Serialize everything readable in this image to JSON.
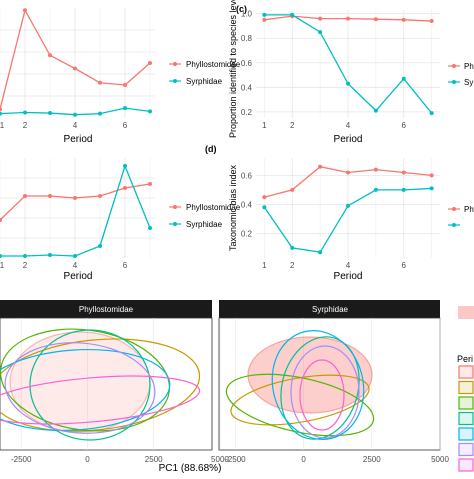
{
  "colors": {
    "phyllostomidae": "#F8766D",
    "syrphidae": "#00BFC4",
    "grid": "#e6e6e6",
    "strip": "#1a1a1a",
    "periods": [
      "#F8766D",
      "#C49A00",
      "#53B400",
      "#00C094",
      "#00B6EB",
      "#A58AFF",
      "#FB61D7"
    ]
  },
  "chart_data": [
    {
      "id": "a",
      "type": "line",
      "panel_label": "",
      "xlabel": "Period",
      "ylabel": "",
      "x": [
        1,
        2,
        3,
        4,
        5,
        6,
        7
      ],
      "xticks": [
        "2",
        "4",
        "6"
      ],
      "xlim": [
        1,
        7.2
      ],
      "ylim": [
        0,
        1
      ],
      "series": [
        {
          "name": "Phyllostomidae",
          "values": [
            0.08,
            0.98,
            0.57,
            0.45,
            0.32,
            0.3,
            0.5
          ]
        },
        {
          "name": "Syrphidae",
          "values": [
            0.04,
            0.05,
            0.045,
            0.03,
            0.04,
            0.09,
            0.06
          ]
        }
      ],
      "legend": "right"
    },
    {
      "id": "c",
      "type": "line",
      "panel_label": "(c)",
      "xlabel": "Period",
      "ylabel": "Proportion identified to species level",
      "x": [
        1,
        2,
        3,
        4,
        5,
        6,
        7
      ],
      "xticks": [
        "2",
        "4",
        "6"
      ],
      "yticks": [
        "0.2",
        "0.4",
        "0.6",
        "0.8",
        "1.0"
      ],
      "xlim": [
        0.7,
        7.3
      ],
      "ylim": [
        0.15,
        1.03
      ],
      "series": [
        {
          "name": "Phyllostomidae",
          "values": [
            0.95,
            0.98,
            0.96,
            0.96,
            0.955,
            0.95,
            0.94
          ]
        },
        {
          "name": "Syrphidae",
          "values": [
            0.99,
            0.99,
            0.85,
            0.43,
            0.21,
            0.47,
            0.19
          ]
        }
      ],
      "legend": "right",
      "legend_labels": [
        "Phyllo",
        "Sy"
      ]
    },
    {
      "id": "b",
      "type": "line",
      "panel_label": "",
      "xlabel": "Period",
      "ylabel": "",
      "x": [
        1,
        2,
        3,
        4,
        5,
        6,
        7
      ],
      "xticks": [
        "2",
        "4",
        "6"
      ],
      "xlim": [
        1,
        7.2
      ],
      "ylim": [
        0,
        1
      ],
      "series": [
        {
          "name": "Phyllostomidae",
          "values": [
            0.38,
            0.62,
            0.62,
            0.6,
            0.62,
            0.7,
            0.74
          ]
        },
        {
          "name": "Syrphidae",
          "values": [
            0.02,
            0.02,
            0.03,
            0.02,
            0.12,
            0.92,
            0.3
          ]
        }
      ],
      "legend": "right"
    },
    {
      "id": "d",
      "type": "line",
      "panel_label": "(d)",
      "xlabel": "Period",
      "ylabel": "Taxonomic bias index",
      "x": [
        1,
        2,
        3,
        4,
        5,
        6,
        7
      ],
      "xticks": [
        "2",
        "4",
        "6"
      ],
      "yticks": [
        "0.2",
        "0.4",
        "0.6"
      ],
      "xlim": [
        0.7,
        7.3
      ],
      "ylim": [
        0.03,
        0.72
      ],
      "series": [
        {
          "name": "Phyllostomidae",
          "values": [
            0.45,
            0.5,
            0.66,
            0.62,
            0.64,
            0.62,
            0.6
          ]
        },
        {
          "name": "Syrphidae",
          "values": [
            0.38,
            0.1,
            0.07,
            0.39,
            0.5,
            0.5,
            0.51
          ]
        }
      ],
      "legend": "right",
      "legend_labels": [
        "Phyllo",
        ""
      ]
    },
    {
      "id": "e",
      "type": "scatter",
      "panel_label": "",
      "xlabel": "PC1 (88.68%)",
      "ylabel": "",
      "facets": [
        "Phyllostomidae",
        "Syrphidae"
      ],
      "xticks": [
        "-2500",
        "0",
        "2500",
        "5000"
      ],
      "xlim": [
        -3300,
        5000
      ],
      "legend": "right",
      "legend_title": "Peri",
      "legend_keys": 7
    }
  ]
}
